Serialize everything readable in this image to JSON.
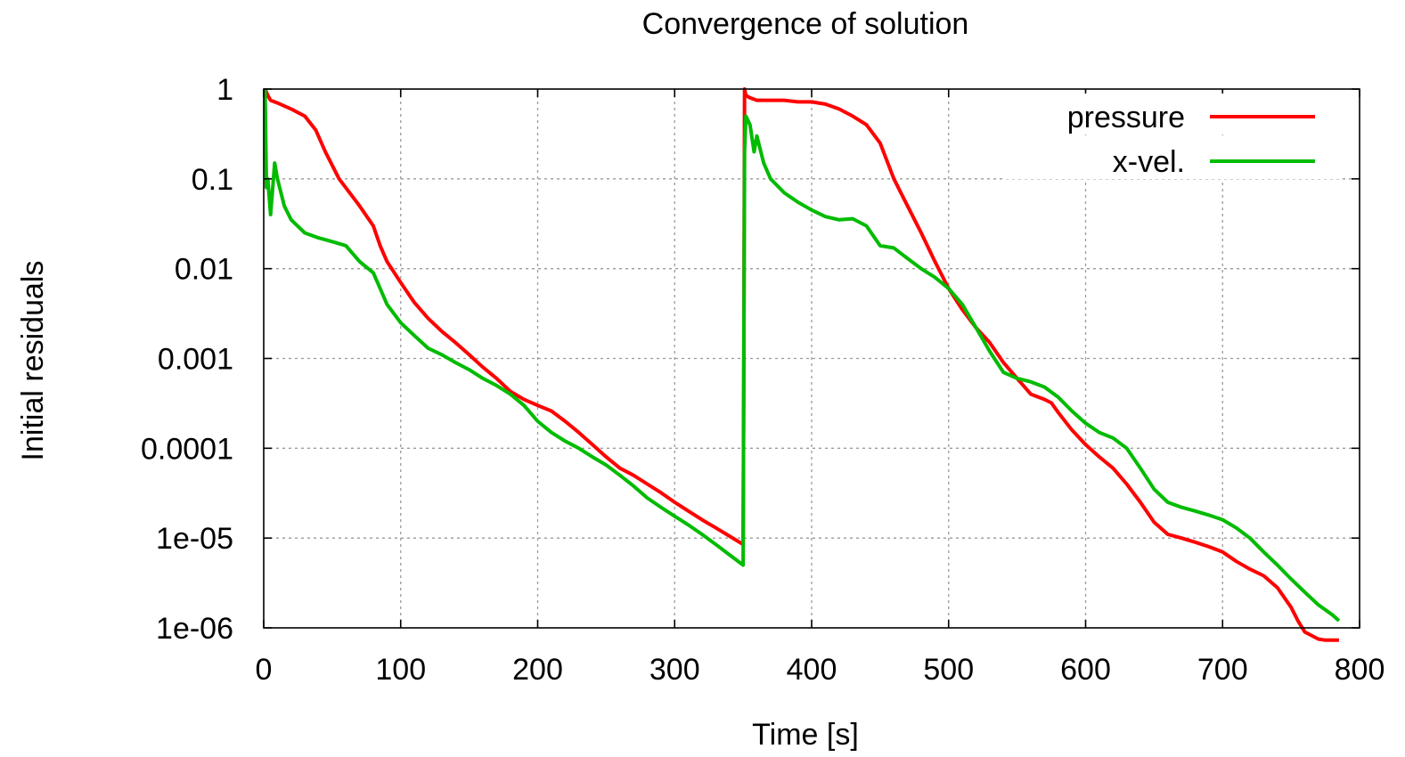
{
  "chart_data": {
    "type": "line",
    "title": "Convergence of solution",
    "xlabel": "Time [s]",
    "ylabel": "Initial residuals",
    "xlim": [
      0,
      800
    ],
    "ylim": [
      1e-06,
      1
    ],
    "yscale": "log",
    "grid": true,
    "legend_position": "top-right",
    "x_ticks": [
      0,
      100,
      200,
      300,
      400,
      500,
      600,
      700,
      800
    ],
    "x_tick_labels": [
      "0",
      "100",
      "200",
      "300",
      "400",
      "500",
      "600",
      "700",
      "800"
    ],
    "y_ticks": [
      1,
      0.1,
      0.01,
      0.001,
      0.0001,
      1e-05,
      1e-06
    ],
    "y_tick_labels": [
      "1",
      "0.1",
      "0.01",
      "0.001",
      "0.0001",
      "1e-05",
      "1e-06"
    ],
    "series": [
      {
        "name": "pressure",
        "color": "#ff0000",
        "x": [
          1,
          3,
          5,
          10,
          20,
          30,
          38,
          45,
          55,
          70,
          80,
          85,
          90,
          100,
          110,
          120,
          130,
          140,
          150,
          160,
          170,
          180,
          190,
          200,
          210,
          220,
          230,
          240,
          250,
          260,
          270,
          280,
          290,
          300,
          310,
          320,
          330,
          340,
          350,
          350.5,
          351,
          352,
          355,
          360,
          370,
          380,
          390,
          400,
          410,
          420,
          430,
          440,
          450,
          460,
          470,
          480,
          490,
          500,
          510,
          520,
          530,
          540,
          550,
          560,
          570,
          575,
          580,
          590,
          600,
          610,
          620,
          630,
          640,
          650,
          660,
          670,
          680,
          690,
          700,
          710,
          720,
          730,
          740,
          750,
          755,
          760,
          770,
          775,
          785
        ],
        "y": [
          1,
          0.85,
          0.75,
          0.7,
          0.6,
          0.5,
          0.35,
          0.2,
          0.1,
          0.05,
          0.03,
          0.018,
          0.012,
          0.007,
          0.0042,
          0.0028,
          0.002,
          0.0015,
          0.0011,
          0.0008,
          0.0006,
          0.00043,
          0.00035,
          0.0003,
          0.00026,
          0.0002,
          0.00015,
          0.00011,
          8e-05,
          6e-05,
          5e-05,
          4e-05,
          3.2e-05,
          2.5e-05,
          2e-05,
          1.6e-05,
          1.3e-05,
          1.05e-05,
          8.5e-06,
          0.001,
          1,
          0.85,
          0.8,
          0.75,
          0.75,
          0.75,
          0.72,
          0.72,
          0.68,
          0.6,
          0.5,
          0.4,
          0.25,
          0.1,
          0.05,
          0.025,
          0.012,
          0.006,
          0.0035,
          0.0022,
          0.0015,
          0.0009,
          0.0006,
          0.0004,
          0.00035,
          0.00032,
          0.00025,
          0.00016,
          0.00011,
          8e-05,
          6e-05,
          4e-05,
          2.5e-05,
          1.5e-05,
          1.1e-05,
          1e-05,
          9e-06,
          8e-06,
          7e-06,
          5.5e-06,
          4.5e-06,
          3.8e-06,
          2.8e-06,
          1.7e-06,
          1.2e-06,
          9e-07,
          7.5e-07,
          7.3e-07,
          7.3e-07
        ]
      },
      {
        "name": "x-vel.",
        "color": "#00bb00",
        "x": [
          1,
          2,
          3,
          5,
          8,
          10,
          15,
          20,
          30,
          40,
          50,
          60,
          70,
          80,
          85,
          90,
          100,
          110,
          120,
          130,
          140,
          150,
          160,
          170,
          180,
          190,
          200,
          210,
          220,
          230,
          240,
          250,
          260,
          270,
          280,
          290,
          300,
          310,
          320,
          330,
          340,
          350,
          350.5,
          351,
          352,
          355,
          358,
          360,
          365,
          370,
          380,
          390,
          400,
          410,
          420,
          430,
          440,
          450,
          460,
          470,
          480,
          490,
          500,
          510,
          520,
          530,
          540,
          550,
          560,
          570,
          580,
          590,
          600,
          610,
          620,
          630,
          640,
          650,
          660,
          670,
          680,
          690,
          700,
          710,
          720,
          730,
          740,
          750,
          760,
          770,
          780,
          785
        ],
        "y": [
          1,
          0.08,
          0.1,
          0.04,
          0.15,
          0.1,
          0.05,
          0.035,
          0.025,
          0.022,
          0.02,
          0.018,
          0.012,
          0.009,
          0.006,
          0.004,
          0.0025,
          0.0018,
          0.0013,
          0.0011,
          0.0009,
          0.00075,
          0.0006,
          0.0005,
          0.0004,
          0.0003,
          0.0002,
          0.00015,
          0.00012,
          0.0001,
          8e-05,
          6.5e-05,
          5e-05,
          3.8e-05,
          2.8e-05,
          2.2e-05,
          1.75e-05,
          1.4e-05,
          1.1e-05,
          8.5e-06,
          6.5e-06,
          5e-06,
          0.001,
          0.2,
          0.5,
          0.4,
          0.2,
          0.3,
          0.15,
          0.1,
          0.07,
          0.055,
          0.045,
          0.038,
          0.035,
          0.036,
          0.03,
          0.018,
          0.017,
          0.013,
          0.01,
          0.008,
          0.006,
          0.004,
          0.0022,
          0.0012,
          0.0007,
          0.0006,
          0.00055,
          0.00048,
          0.00037,
          0.00026,
          0.00019,
          0.00015,
          0.00013,
          0.0001,
          6e-05,
          3.5e-05,
          2.5e-05,
          2.2e-05,
          2e-05,
          1.8e-05,
          1.6e-05,
          1.3e-05,
          1e-05,
          7e-06,
          5e-06,
          3.5e-06,
          2.5e-06,
          1.8e-06,
          1.4e-06,
          1.2e-06
        ]
      }
    ]
  }
}
